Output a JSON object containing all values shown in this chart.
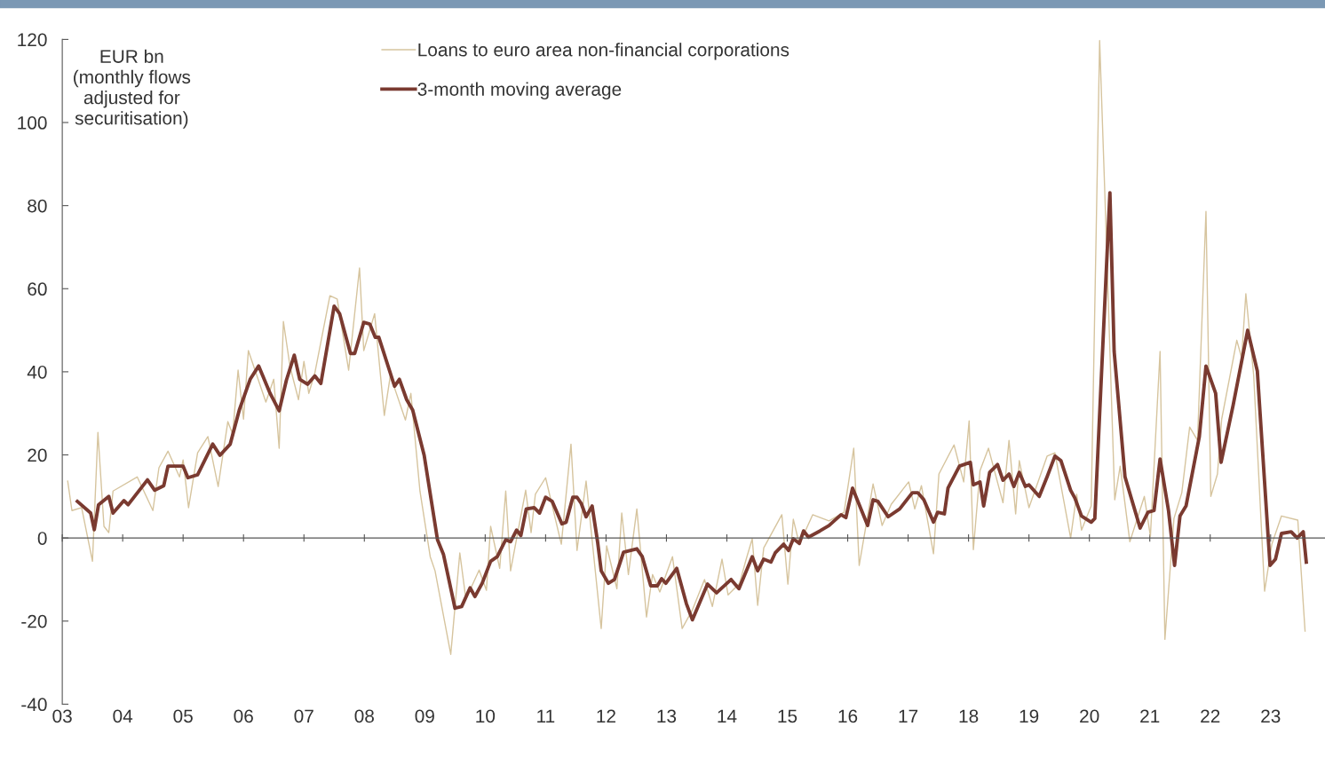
{
  "chart_data": {
    "type": "line",
    "ylabel": "EUR bn\n(monthly flows\nadjusted for\nsecuritisation)",
    "xlim": [
      2003.0,
      2023.9
    ],
    "ylim": [
      -40,
      120
    ],
    "xticks": [
      {
        "value": 2003,
        "label": "03"
      },
      {
        "value": 2004,
        "label": "04"
      },
      {
        "value": 2005,
        "label": "05"
      },
      {
        "value": 2006,
        "label": "06"
      },
      {
        "value": 2007,
        "label": "07"
      },
      {
        "value": 2008,
        "label": "08"
      },
      {
        "value": 2009,
        "label": "09"
      },
      {
        "value": 2010,
        "label": "10"
      },
      {
        "value": 2011,
        "label": "11"
      },
      {
        "value": 2012,
        "label": "12"
      },
      {
        "value": 2013,
        "label": "13"
      },
      {
        "value": 2014,
        "label": "14"
      },
      {
        "value": 2015,
        "label": "15"
      },
      {
        "value": 2016,
        "label": "16"
      },
      {
        "value": 2017,
        "label": "17"
      },
      {
        "value": 2018,
        "label": "18"
      },
      {
        "value": 2019,
        "label": "19"
      },
      {
        "value": 2020,
        "label": "20"
      },
      {
        "value": 2021,
        "label": "21"
      },
      {
        "value": 2022,
        "label": "22"
      },
      {
        "value": 2023,
        "label": "23"
      }
    ],
    "yticks": [
      -40,
      -20,
      0,
      20,
      40,
      60,
      80,
      100,
      120
    ],
    "legend": "top",
    "marker": "none",
    "line_style": "solid",
    "series": [
      {
        "name": "Loans to euro area non-financial corporations",
        "color": "#d6c49e",
        "x": [
          2003.09,
          2003.16,
          2003.32,
          2003.5,
          2003.59,
          2003.69,
          2003.77,
          2003.84,
          2004.24,
          2004.5,
          2004.6,
          2004.75,
          2004.94,
          2005.0,
          2005.09,
          2005.24,
          2005.41,
          2005.58,
          2005.74,
          2005.82,
          2005.91,
          2006.0,
          2006.08,
          2006.37,
          2006.5,
          2006.59,
          2006.66,
          2006.77,
          2006.91,
          2007.0,
          2007.08,
          2007.18,
          2007.43,
          2007.55,
          2007.74,
          2007.92,
          2007.99,
          2008.17,
          2008.33,
          2008.43,
          2008.68,
          2008.77,
          2008.92,
          2009.09,
          2009.17,
          2009.43,
          2009.58,
          2009.68,
          2009.9,
          2010.02,
          2010.09,
          2010.24,
          2010.34,
          2010.42,
          2010.67,
          2010.76,
          2010.83,
          2011.0,
          2011.26,
          2011.42,
          2011.52,
          2011.67,
          2011.92,
          2012.01,
          2012.18,
          2012.26,
          2012.37,
          2012.51,
          2012.67,
          2012.77,
          2012.89,
          2013.1,
          2013.26,
          2013.43,
          2013.63,
          2013.76,
          2013.92,
          2014.02,
          2014.21,
          2014.32,
          2014.42,
          2014.51,
          2014.61,
          2014.91,
          2015.01,
          2015.1,
          2015.2,
          2015.42,
          2015.69,
          2015.94,
          2016.1,
          2016.19,
          2016.42,
          2016.57,
          2016.72,
          2017.01,
          2017.11,
          2017.22,
          2017.42,
          2017.51,
          2017.76,
          2017.92,
          2018.01,
          2018.08,
          2018.19,
          2018.33,
          2018.57,
          2018.67,
          2018.78,
          2018.84,
          2019.0,
          2019.3,
          2019.43,
          2019.69,
          2019.79,
          2019.87,
          2020.03,
          2020.17,
          2020.25,
          2020.42,
          2020.51,
          2020.67,
          2020.91,
          2021.01,
          2021.17,
          2021.25,
          2021.4,
          2021.53,
          2021.66,
          2021.79,
          2021.93,
          2022.01,
          2022.12,
          2022.19,
          2022.44,
          2022.52,
          2022.59,
          2022.72,
          2022.9,
          2023.02,
          2023.18,
          2023.45,
          2023.57
        ],
        "values": [
          13.7,
          6.6,
          7.3,
          -5.6,
          25.4,
          2.8,
          1.3,
          11.3,
          14.7,
          6.6,
          16.9,
          20.9,
          14.7,
          18.8,
          7.3,
          20.5,
          24.4,
          12.4,
          28,
          25,
          40.4,
          28.6,
          45.1,
          32.7,
          38.2,
          21.6,
          52.1,
          41.2,
          33.3,
          42.5,
          34.8,
          39.7,
          58.3,
          57.5,
          40.4,
          65,
          45.1,
          54,
          29.5,
          39.1,
          28.4,
          34.8,
          11.3,
          -4.5,
          -7.9,
          -28,
          -3.6,
          -14.7,
          -7.7,
          -12.6,
          2.8,
          -7.3,
          11.3,
          -7.9,
          11.5,
          1.3,
          10.5,
          14.5,
          -1.5,
          22.6,
          -3,
          13.7,
          -21.8,
          -1.9,
          -12.2,
          6,
          -8.8,
          7,
          -19,
          -8.8,
          -13,
          -4.5,
          -21.8,
          -17.3,
          -10,
          -16.5,
          -5.1,
          -13.7,
          -10.9,
          -5.1,
          -0.2,
          -16.2,
          -2.4,
          5.6,
          -11.1,
          4.5,
          -1.5,
          5.6,
          4.1,
          6.2,
          21.6,
          -6.6,
          13,
          3,
          8.1,
          13.5,
          7,
          12.6,
          -3.8,
          15.4,
          22.4,
          13.5,
          28.2,
          -2.8,
          16.2,
          21.6,
          8.5,
          23.5,
          5.8,
          18.6,
          7.3,
          19.7,
          20.5,
          0,
          10.5,
          1.9,
          7.7,
          119.7,
          85.5,
          9.2,
          17.3,
          -0.9,
          10,
          0.4,
          44.9,
          -24.4,
          4.7,
          10.9,
          26.7,
          23.5,
          78.6,
          10,
          15.4,
          28.6,
          47.6,
          43.4,
          58.8,
          39.1,
          -12.8,
          -1.5,
          5.3,
          4.3,
          -22.4
        ]
      },
      {
        "name": "3-month moving average",
        "color": "#7a3a30",
        "x": [
          2003.25,
          2003.47,
          2003.53,
          2003.6,
          2003.77,
          2003.84,
          2004.02,
          2004.09,
          2004.41,
          2004.53,
          2004.68,
          2004.75,
          2005.0,
          2005.08,
          2005.24,
          2005.49,
          2005.61,
          2005.78,
          2005.93,
          2006.11,
          2006.25,
          2006.44,
          2006.59,
          2006.71,
          2006.84,
          2006.93,
          2007.06,
          2007.18,
          2007.28,
          2007.5,
          2007.59,
          2007.77,
          2007.84,
          2007.99,
          2008.09,
          2008.18,
          2008.24,
          2008.5,
          2008.58,
          2008.7,
          2008.8,
          2008.99,
          2009.21,
          2009.31,
          2009.5,
          2009.61,
          2009.75,
          2009.83,
          2009.95,
          2010.09,
          2010.2,
          2010.34,
          2010.42,
          2010.52,
          2010.59,
          2010.68,
          2010.81,
          2010.9,
          2011.0,
          2011.11,
          2011.27,
          2011.34,
          2011.45,
          2011.52,
          2011.59,
          2011.67,
          2011.77,
          2011.86,
          2011.92,
          2012.04,
          2012.14,
          2012.29,
          2012.51,
          2012.6,
          2012.74,
          2012.85,
          2012.92,
          2012.99,
          2013.17,
          2013.33,
          2013.43,
          2013.68,
          2013.83,
          2014.07,
          2014.2,
          2014.42,
          2014.51,
          2014.61,
          2014.73,
          2014.8,
          2014.94,
          2015.02,
          2015.1,
          2015.2,
          2015.27,
          2015.35,
          2015.54,
          2015.69,
          2015.89,
          2015.97,
          2016.08,
          2016.33,
          2016.42,
          2016.5,
          2016.67,
          2016.86,
          2017.07,
          2017.16,
          2017.26,
          2017.42,
          2017.49,
          2017.6,
          2017.66,
          2017.85,
          2018.03,
          2018.08,
          2018.19,
          2018.25,
          2018.35,
          2018.48,
          2018.57,
          2018.67,
          2018.75,
          2018.84,
          2018.94,
          2019.0,
          2019.17,
          2019.3,
          2019.43,
          2019.53,
          2019.69,
          2019.76,
          2019.87,
          2020.03,
          2020.09,
          2020.34,
          2020.41,
          2020.59,
          2020.84,
          2020.97,
          2021.07,
          2021.17,
          2021.31,
          2021.41,
          2021.5,
          2021.6,
          2021.82,
          2021.93,
          2022.09,
          2022.18,
          2022.38,
          2022.62,
          2022.78,
          2022.99,
          2023.08,
          2023.18,
          2023.34,
          2023.44,
          2023.54,
          2023.59
        ],
        "values": [
          8.8,
          6,
          2,
          8,
          10,
          6,
          9,
          8,
          14,
          11.5,
          12.6,
          17.3,
          17.3,
          14.5,
          15.2,
          22.6,
          19.9,
          22.6,
          30.8,
          38.2,
          41.4,
          34.8,
          30.6,
          38,
          44,
          38.2,
          37,
          39,
          37.2,
          55.8,
          54,
          44.4,
          44.4,
          51.9,
          51.5,
          48.3,
          48.3,
          36.5,
          38.2,
          33.3,
          30.8,
          19.9,
          -0.4,
          -4,
          -16.9,
          -16.5,
          -12,
          -14.1,
          -10.9,
          -5.6,
          -4.5,
          -0.4,
          -0.9,
          1.9,
          0.6,
          7,
          7.3,
          6,
          9.8,
          8.8,
          3.4,
          3.8,
          9.8,
          9.8,
          8.3,
          5.1,
          7.7,
          -0.9,
          -7.9,
          -10.9,
          -10,
          -3.4,
          -2.6,
          -4.5,
          -11.5,
          -11.5,
          -9.8,
          -10.9,
          -7.3,
          -15.8,
          -19.7,
          -11.1,
          -13.2,
          -10,
          -12.2,
          -4.5,
          -7.9,
          -5.1,
          -5.8,
          -3.6,
          -1.5,
          -3,
          -0.2,
          -1.3,
          1.7,
          0.2,
          1.7,
          3,
          5.6,
          4.9,
          12,
          3,
          9.2,
          8.8,
          5.1,
          7,
          10.9,
          10.9,
          9.2,
          3.8,
          6.2,
          5.8,
          12,
          17.3,
          18.2,
          12.8,
          13.5,
          7.7,
          15.8,
          17.7,
          13.9,
          15.4,
          12.4,
          15.8,
          12.4,
          12.8,
          10,
          14.7,
          19.7,
          18.6,
          11.5,
          9.6,
          5.3,
          3.8,
          4.7,
          83.1,
          44.9,
          14.7,
          2.4,
          6.2,
          6.6,
          19,
          6.6,
          -6.6,
          5.3,
          7.7,
          24.4,
          41.4,
          34.8,
          18.2,
          32,
          50,
          40.2,
          -6.6,
          -5.1,
          1.1,
          1.5,
          0,
          1.5,
          -5.8
        ]
      }
    ]
  }
}
